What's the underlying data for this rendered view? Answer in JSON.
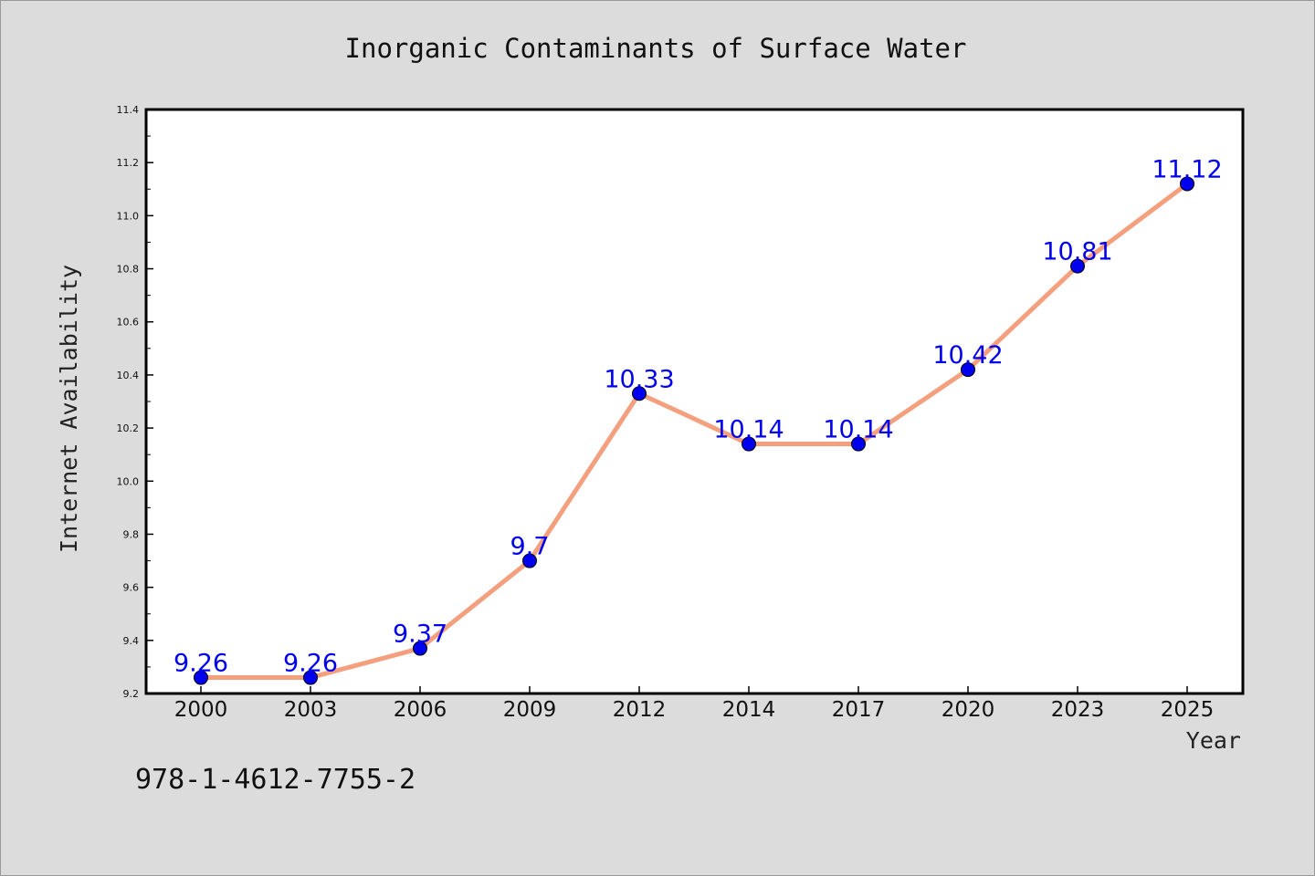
{
  "chart_data": {
    "type": "line",
    "title": "Inorganic Contaminants of Surface Water",
    "xlabel": "Year",
    "ylabel": "Internet Availability",
    "categories": [
      "2000",
      "2003",
      "2006",
      "2009",
      "2012",
      "2014",
      "2017",
      "2020",
      "2023",
      "2025"
    ],
    "series": [
      {
        "values": [
          9.26,
          9.26,
          9.37,
          9.7,
          10.33,
          10.14,
          10.14,
          10.42,
          10.81,
          11.12
        ]
      }
    ],
    "data_labels": [
      "9.26",
      "9.26",
      "9.37",
      "9.7",
      "10.33",
      "10.14",
      "10.14",
      "10.42",
      "10.81",
      "11.12"
    ],
    "ylim": [
      9.2,
      11.4
    ],
    "yticks": [
      "9.2",
      "9.4",
      "9.6",
      "9.8",
      "10.0",
      "10.2",
      "10.4",
      "10.6",
      "10.8",
      "11.0",
      "11.2",
      "11.4"
    ],
    "grid": false,
    "legend": false,
    "colors": {
      "line": "#f4a07e",
      "marker": "#0000ee",
      "label": "#0000ee",
      "background": "#dcdcdc",
      "plot_bg": "#ffffff"
    }
  },
  "footer": {
    "isbn": "978-1-4612-7755-2"
  }
}
